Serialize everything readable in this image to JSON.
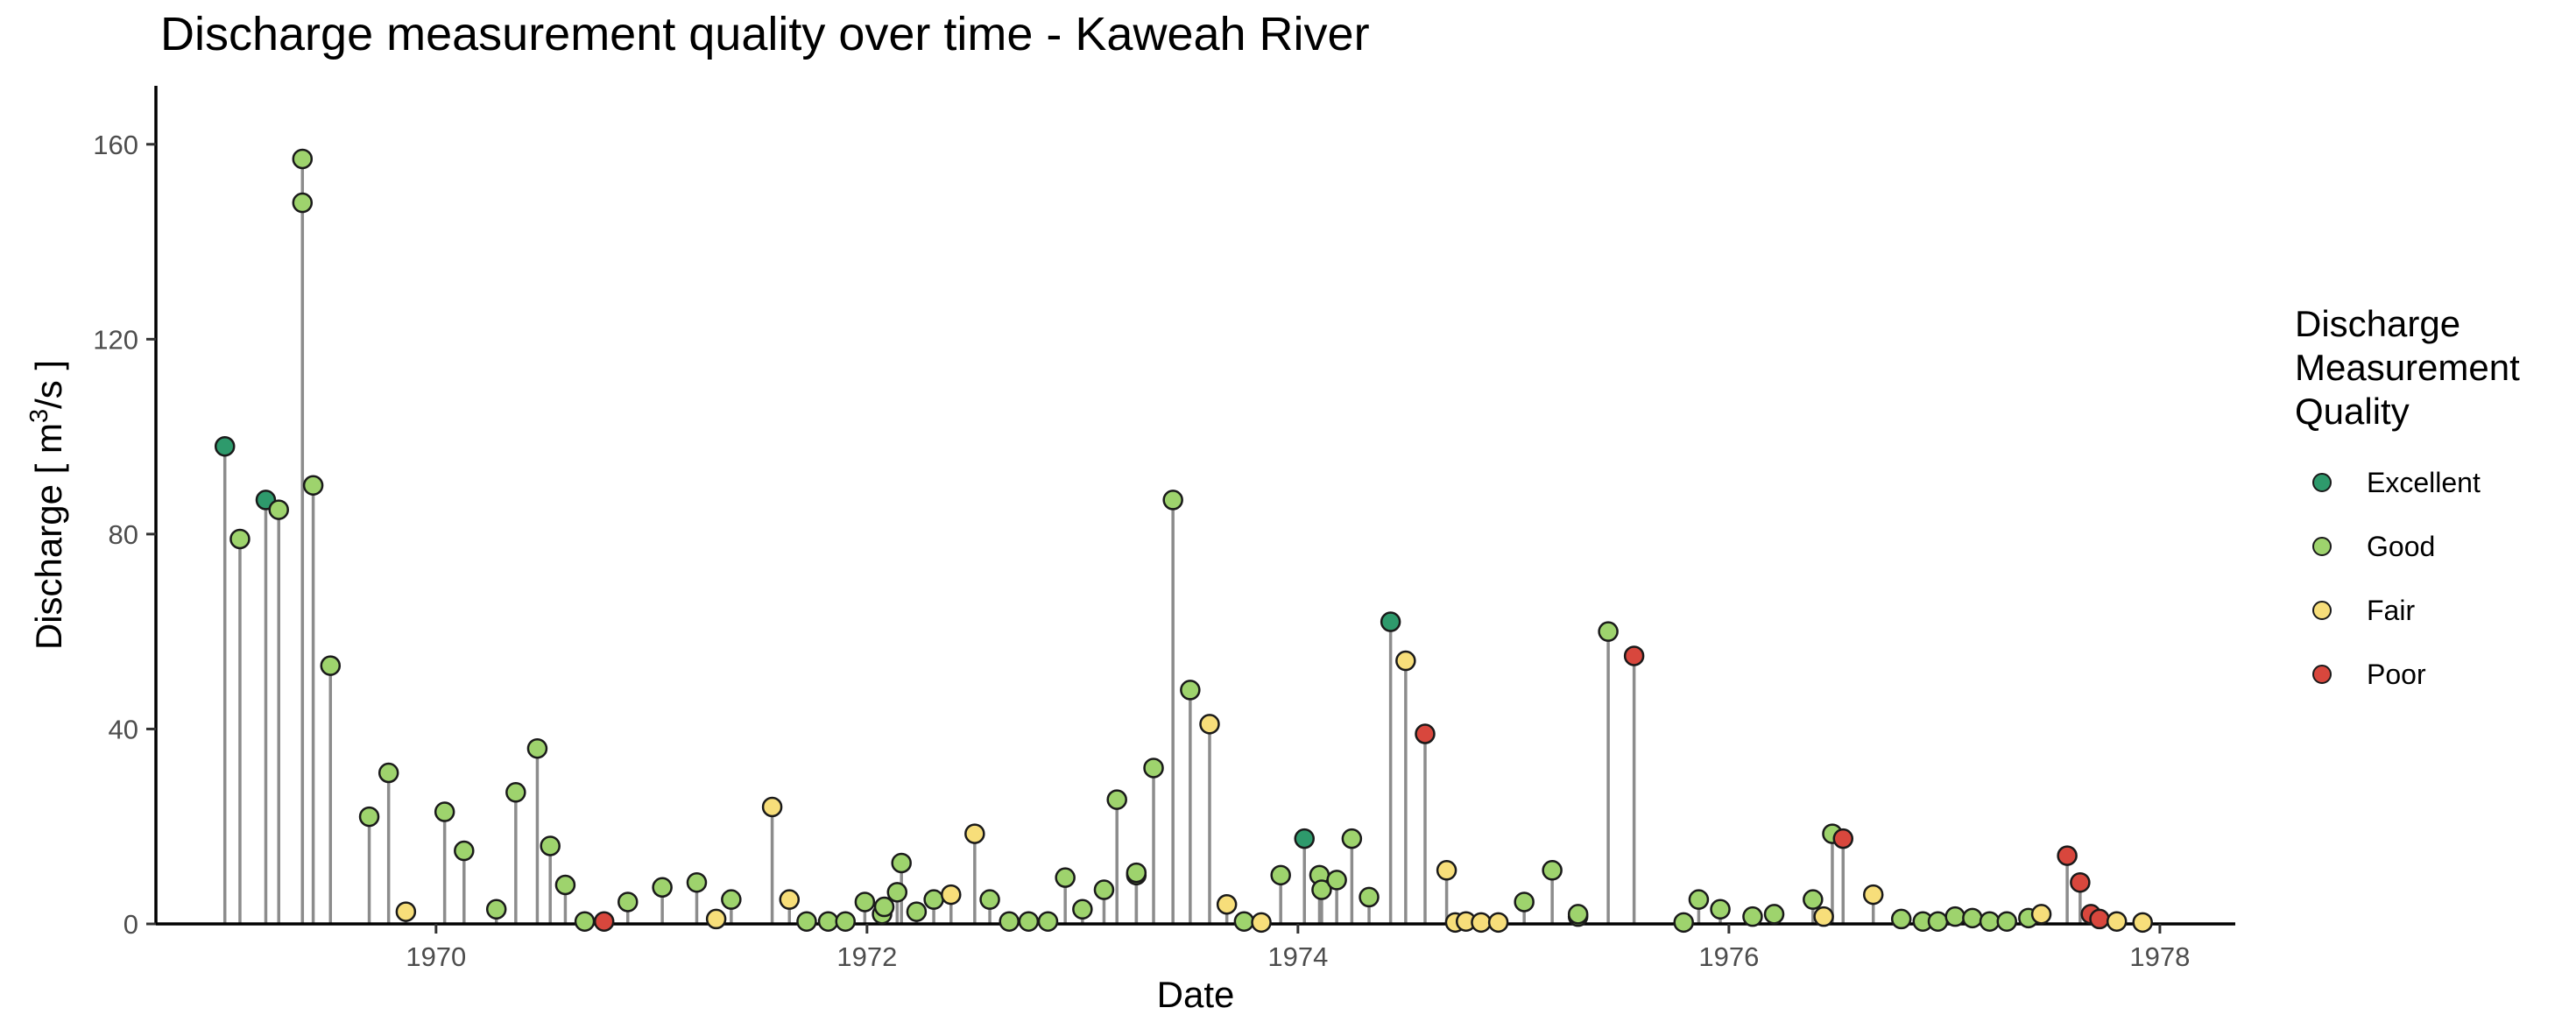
{
  "chart_data": {
    "type": "scatter",
    "style": "lollipop",
    "title": "Discharge measurement quality over time - Kaweah River",
    "xlabel": "Date",
    "ylabel_main": "Discharge  [ m",
    "ylabel_sup": "3",
    "ylabel_tail": "/s ]",
    "xlim": [
      1968.7,
      1978.35
    ],
    "ylim": [
      0,
      172
    ],
    "x_ticks": [
      1970,
      1972,
      1974,
      1976,
      1978
    ],
    "x_tick_labels": [
      "1970",
      "1972",
      "1974",
      "1976",
      "1978"
    ],
    "y_ticks": [
      0,
      40,
      80,
      120,
      160
    ],
    "y_tick_labels": [
      "0",
      "40",
      "80",
      "120",
      "160"
    ],
    "grid": false,
    "legend": {
      "title_lines": [
        "Discharge",
        "Measurement",
        "Quality"
      ],
      "placement": "right",
      "entries": [
        {
          "label": "Excellent",
          "color": "#2e9a6c"
        },
        {
          "label": "Good",
          "color": "#9ed36d"
        },
        {
          "label": "Fair",
          "color": "#f7de7a"
        },
        {
          "label": "Poor",
          "color": "#d8473d"
        }
      ]
    },
    "colors": {
      "Excellent": "#2e9a6c",
      "Good": "#9ed36d",
      "Fair": "#f7de7a",
      "Poor": "#d8473d",
      "stem": "#8c8c8c",
      "outline": "#1a1a1a"
    },
    "points": [
      {
        "x": 1969.02,
        "y": 98,
        "q": "Excellent"
      },
      {
        "x": 1969.09,
        "y": 79,
        "q": "Good"
      },
      {
        "x": 1969.21,
        "y": 87,
        "q": "Excellent"
      },
      {
        "x": 1969.27,
        "y": 85,
        "q": "Good"
      },
      {
        "x": 1969.38,
        "y": 148,
        "q": "Good"
      },
      {
        "x": 1969.38,
        "y": 157,
        "q": "Good"
      },
      {
        "x": 1969.43,
        "y": 90,
        "q": "Good"
      },
      {
        "x": 1969.51,
        "y": 53,
        "q": "Good"
      },
      {
        "x": 1969.69,
        "y": 22,
        "q": "Good"
      },
      {
        "x": 1969.78,
        "y": 31,
        "q": "Good"
      },
      {
        "x": 1969.86,
        "y": 2.5,
        "q": "Fair"
      },
      {
        "x": 1970.04,
        "y": 23,
        "q": "Good"
      },
      {
        "x": 1970.13,
        "y": 15,
        "q": "Good"
      },
      {
        "x": 1970.28,
        "y": 3,
        "q": "Good"
      },
      {
        "x": 1970.37,
        "y": 27,
        "q": "Good"
      },
      {
        "x": 1970.47,
        "y": 36,
        "q": "Good"
      },
      {
        "x": 1970.53,
        "y": 16,
        "q": "Good"
      },
      {
        "x": 1970.6,
        "y": 8,
        "q": "Good"
      },
      {
        "x": 1970.69,
        "y": 0.5,
        "q": "Good"
      },
      {
        "x": 1970.78,
        "y": 0.5,
        "q": "Poor"
      },
      {
        "x": 1970.89,
        "y": 4.5,
        "q": "Good"
      },
      {
        "x": 1971.05,
        "y": 7.5,
        "q": "Good"
      },
      {
        "x": 1971.21,
        "y": 8.5,
        "q": "Good"
      },
      {
        "x": 1971.3,
        "y": 1,
        "q": "Fair"
      },
      {
        "x": 1971.37,
        "y": 5,
        "q": "Good"
      },
      {
        "x": 1971.56,
        "y": 24,
        "q": "Fair"
      },
      {
        "x": 1971.64,
        "y": 5,
        "q": "Fair"
      },
      {
        "x": 1971.72,
        "y": 0.5,
        "q": "Good"
      },
      {
        "x": 1971.82,
        "y": 0.5,
        "q": "Good"
      },
      {
        "x": 1971.9,
        "y": 0.5,
        "q": "Good"
      },
      {
        "x": 1971.99,
        "y": 4.5,
        "q": "Good"
      },
      {
        "x": 1972.07,
        "y": 2,
        "q": "Good"
      },
      {
        "x": 1972.08,
        "y": 3.5,
        "q": "Good"
      },
      {
        "x": 1972.14,
        "y": 6.5,
        "q": "Good"
      },
      {
        "x": 1972.16,
        "y": 12.5,
        "q": "Good"
      },
      {
        "x": 1972.23,
        "y": 2.5,
        "q": "Good"
      },
      {
        "x": 1972.31,
        "y": 5,
        "q": "Good"
      },
      {
        "x": 1972.39,
        "y": 6,
        "q": "Fair"
      },
      {
        "x": 1972.5,
        "y": 18.5,
        "q": "Fair"
      },
      {
        "x": 1972.57,
        "y": 5,
        "q": "Good"
      },
      {
        "x": 1972.66,
        "y": 0.5,
        "q": "Good"
      },
      {
        "x": 1972.75,
        "y": 0.5,
        "q": "Good"
      },
      {
        "x": 1972.84,
        "y": 0.5,
        "q": "Good"
      },
      {
        "x": 1972.92,
        "y": 9.5,
        "q": "Good"
      },
      {
        "x": 1973.0,
        "y": 3,
        "q": "Good"
      },
      {
        "x": 1973.1,
        "y": 7,
        "q": "Good"
      },
      {
        "x": 1973.16,
        "y": 25.5,
        "q": "Good"
      },
      {
        "x": 1973.25,
        "y": 10,
        "q": "Good"
      },
      {
        "x": 1973.25,
        "y": 10.5,
        "q": "Good"
      },
      {
        "x": 1973.33,
        "y": 32,
        "q": "Good"
      },
      {
        "x": 1973.42,
        "y": 87,
        "q": "Good"
      },
      {
        "x": 1973.5,
        "y": 48,
        "q": "Good"
      },
      {
        "x": 1973.59,
        "y": 41,
        "q": "Fair"
      },
      {
        "x": 1973.67,
        "y": 4,
        "q": "Fair"
      },
      {
        "x": 1973.75,
        "y": 0.5,
        "q": "Good"
      },
      {
        "x": 1973.83,
        "y": 0.3,
        "q": "Fair"
      },
      {
        "x": 1973.92,
        "y": 10,
        "q": "Good"
      },
      {
        "x": 1974.03,
        "y": 17.5,
        "q": "Excellent"
      },
      {
        "x": 1974.1,
        "y": 10,
        "q": "Good"
      },
      {
        "x": 1974.11,
        "y": 7,
        "q": "Good"
      },
      {
        "x": 1974.18,
        "y": 9,
        "q": "Good"
      },
      {
        "x": 1974.25,
        "y": 17.5,
        "q": "Good"
      },
      {
        "x": 1974.33,
        "y": 5.5,
        "q": "Good"
      },
      {
        "x": 1974.43,
        "y": 62,
        "q": "Excellent"
      },
      {
        "x": 1974.5,
        "y": 54,
        "q": "Fair"
      },
      {
        "x": 1974.59,
        "y": 39,
        "q": "Poor"
      },
      {
        "x": 1974.69,
        "y": 11,
        "q": "Fair"
      },
      {
        "x": 1974.73,
        "y": 0.3,
        "q": "Fair"
      },
      {
        "x": 1974.78,
        "y": 0.5,
        "q": "Fair"
      },
      {
        "x": 1974.85,
        "y": 0.3,
        "q": "Fair"
      },
      {
        "x": 1974.93,
        "y": 0.3,
        "q": "Fair"
      },
      {
        "x": 1975.05,
        "y": 4.5,
        "q": "Good"
      },
      {
        "x": 1975.18,
        "y": 11,
        "q": "Good"
      },
      {
        "x": 1975.3,
        "y": 1.5,
        "q": "Good"
      },
      {
        "x": 1975.3,
        "y": 2,
        "q": "Good"
      },
      {
        "x": 1975.44,
        "y": 60,
        "q": "Good"
      },
      {
        "x": 1975.56,
        "y": 55,
        "q": "Poor"
      },
      {
        "x": 1975.79,
        "y": 0.3,
        "q": "Good"
      },
      {
        "x": 1975.86,
        "y": 5,
        "q": "Good"
      },
      {
        "x": 1975.96,
        "y": 3,
        "q": "Good"
      },
      {
        "x": 1976.11,
        "y": 1.5,
        "q": "Good"
      },
      {
        "x": 1976.21,
        "y": 2,
        "q": "Good"
      },
      {
        "x": 1976.39,
        "y": 5,
        "q": "Good"
      },
      {
        "x": 1976.44,
        "y": 1.5,
        "q": "Fair"
      },
      {
        "x": 1976.48,
        "y": 18.5,
        "q": "Good"
      },
      {
        "x": 1976.53,
        "y": 17.5,
        "q": "Poor"
      },
      {
        "x": 1976.67,
        "y": 6,
        "q": "Fair"
      },
      {
        "x": 1976.8,
        "y": 1,
        "q": "Good"
      },
      {
        "x": 1976.9,
        "y": 0.5,
        "q": "Good"
      },
      {
        "x": 1976.97,
        "y": 0.5,
        "q": "Good"
      },
      {
        "x": 1977.05,
        "y": 1.5,
        "q": "Good"
      },
      {
        "x": 1977.13,
        "y": 1.2,
        "q": "Good"
      },
      {
        "x": 1977.21,
        "y": 0.5,
        "q": "Good"
      },
      {
        "x": 1977.29,
        "y": 0.5,
        "q": "Good"
      },
      {
        "x": 1977.39,
        "y": 1.2,
        "q": "Good"
      },
      {
        "x": 1977.45,
        "y": 2,
        "q": "Fair"
      },
      {
        "x": 1977.57,
        "y": 14,
        "q": "Poor"
      },
      {
        "x": 1977.63,
        "y": 8.5,
        "q": "Poor"
      },
      {
        "x": 1977.68,
        "y": 2,
        "q": "Poor"
      },
      {
        "x": 1977.72,
        "y": 1,
        "q": "Poor"
      },
      {
        "x": 1977.8,
        "y": 0.5,
        "q": "Fair"
      },
      {
        "x": 1977.92,
        "y": 0.3,
        "q": "Fair"
      }
    ]
  }
}
